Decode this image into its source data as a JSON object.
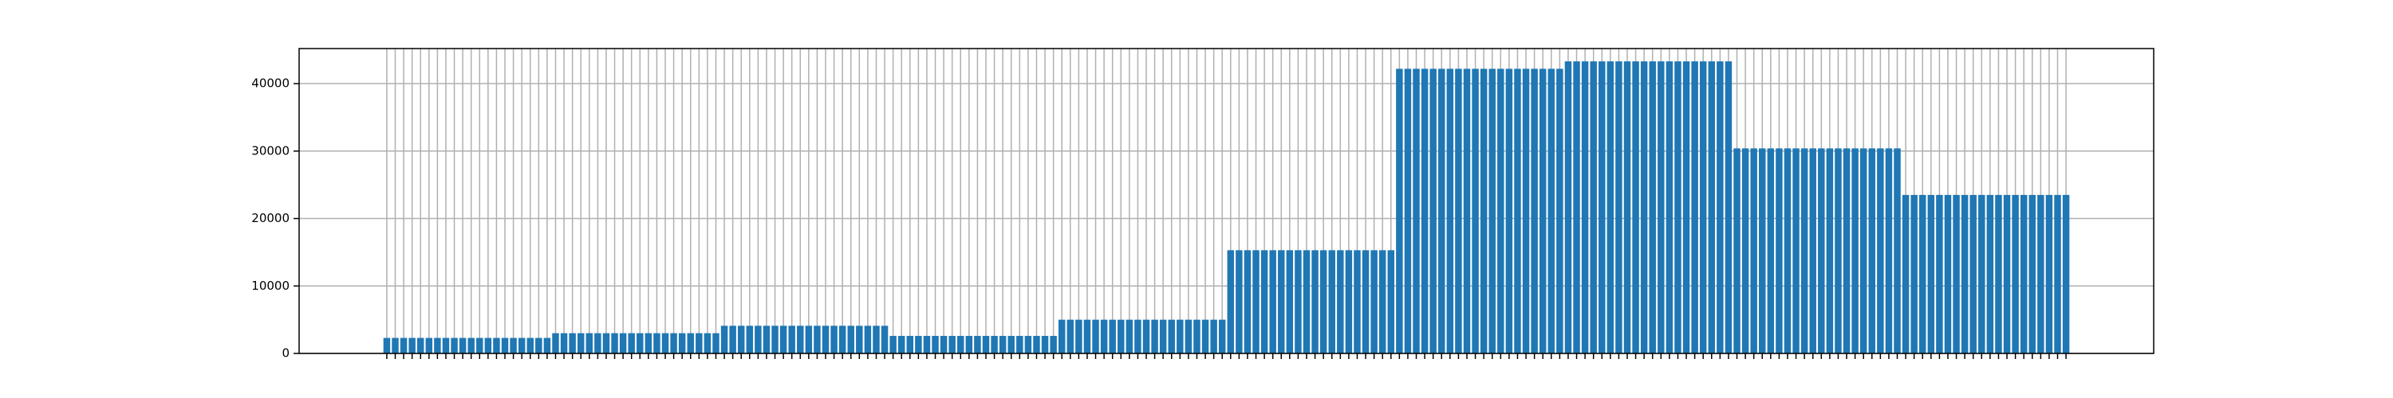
{
  "chart_data": {
    "type": "bar",
    "categories": [
      null,
      null,
      null,
      null,
      null,
      null,
      null,
      null,
      null,
      null,
      null,
      null,
      null,
      null,
      null,
      null,
      null,
      null,
      null,
      null,
      null,
      null,
      null,
      null,
      null,
      null,
      null,
      null,
      null,
      null,
      null,
      null,
      null,
      null,
      null,
      null,
      null,
      null,
      null,
      null,
      null,
      null,
      null,
      null,
      null,
      null,
      null,
      null,
      null,
      null,
      null,
      null,
      null,
      null,
      null,
      null,
      null,
      null,
      null,
      null,
      null,
      null,
      null,
      null,
      null,
      null,
      null,
      null,
      null,
      null,
      null,
      null,
      null,
      null,
      null,
      null,
      null,
      null,
      null,
      null,
      null,
      null,
      null,
      null,
      null,
      null,
      null,
      null,
      null,
      null,
      null,
      null,
      null,
      null,
      null,
      null,
      null,
      null,
      null,
      null,
      null,
      null,
      null,
      null,
      null,
      null,
      null,
      null,
      null,
      null,
      null,
      null,
      null,
      null,
      null,
      null,
      null,
      null,
      null,
      null,
      null,
      null,
      null,
      null,
      null,
      null,
      null,
      null,
      null,
      null,
      null,
      null,
      null,
      null,
      null,
      null,
      null,
      null,
      null,
      null,
      null,
      null,
      null,
      null,
      null,
      null,
      null,
      null,
      null,
      null,
      null,
      null,
      null,
      null,
      null,
      null,
      null,
      null,
      null,
      null,
      null,
      null,
      null,
      null,
      null,
      null,
      null,
      null,
      null,
      null,
      null,
      null,
      null,
      null,
      null,
      null,
      null,
      null,
      null,
      null,
      null,
      null,
      null,
      null,
      null,
      null,
      null,
      null,
      null,
      null,
      null,
      null,
      null,
      null,
      null,
      null,
      null,
      null,
      null,
      null
    ],
    "values": [
      2300,
      2300,
      2300,
      2300,
      2300,
      2300,
      2300,
      2300,
      2300,
      2300,
      2300,
      2300,
      2300,
      2300,
      2300,
      2300,
      2300,
      2300,
      2300,
      2300,
      3000,
      3000,
      3000,
      3000,
      3000,
      3000,
      3000,
      3000,
      3000,
      3000,
      3000,
      3000,
      3000,
      3000,
      3000,
      3000,
      3000,
      3000,
      3000,
      3000,
      4100,
      4100,
      4100,
      4100,
      4100,
      4100,
      4100,
      4100,
      4100,
      4100,
      4100,
      4100,
      4100,
      4100,
      4100,
      4100,
      4100,
      4100,
      4100,
      4100,
      2600,
      2600,
      2600,
      2600,
      2600,
      2600,
      2600,
      2600,
      2600,
      2600,
      2600,
      2600,
      2600,
      2600,
      2600,
      2600,
      2600,
      2600,
      2600,
      2600,
      5000,
      5000,
      5000,
      5000,
      5000,
      5000,
      5000,
      5000,
      5000,
      5000,
      5000,
      5000,
      5000,
      5000,
      5000,
      5000,
      5000,
      5000,
      5000,
      5000,
      15300,
      15300,
      15300,
      15300,
      15300,
      15300,
      15300,
      15300,
      15300,
      15300,
      15300,
      15300,
      15300,
      15300,
      15300,
      15300,
      15300,
      15300,
      15300,
      15300,
      42200,
      42200,
      42200,
      42200,
      42200,
      42200,
      42200,
      42200,
      42200,
      42200,
      42200,
      42200,
      42200,
      42200,
      42200,
      42200,
      42200,
      42200,
      42200,
      42200,
      43300,
      43300,
      43300,
      43300,
      43300,
      43300,
      43300,
      43300,
      43300,
      43300,
      43300,
      43300,
      43300,
      43300,
      43300,
      43300,
      43300,
      43300,
      43300,
      43300,
      30400,
      30400,
      30400,
      30400,
      30400,
      30400,
      30400,
      30400,
      30400,
      30400,
      30400,
      30400,
      30400,
      30400,
      30400,
      30400,
      30400,
      30400,
      30400,
      30400,
      23500,
      23500,
      23500,
      23500,
      23500,
      23500,
      23500,
      23500,
      23500,
      23500,
      23500,
      23500,
      23500,
      23500,
      23500,
      23500,
      23500,
      23500,
      23500,
      23500
    ],
    "color": "#1f77b4",
    "ylim": [
      0,
      45200
    ],
    "yticks": [
      0,
      10000,
      20000,
      30000,
      40000
    ],
    "grid": true
  }
}
